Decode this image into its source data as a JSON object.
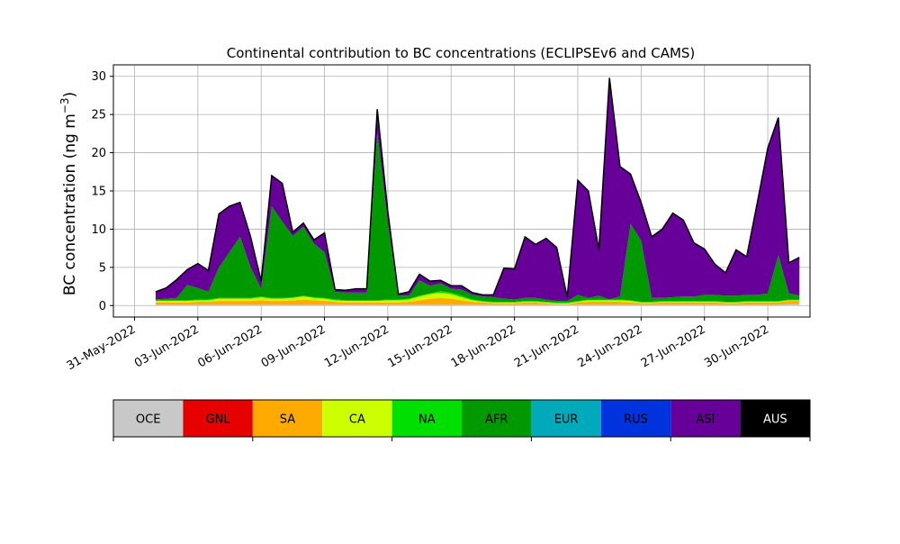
{
  "chart_data": {
    "type": "area",
    "title": "Continental contribution to BC concentrations (ECLIPSEv6 and CAMS)",
    "ylabel": "BC concentration (ng m",
    "ylabel_superscript": "−3",
    "ylabel_close": ")",
    "xlabel": "",
    "x_axis": "dates",
    "x_range": [
      "2022-05-30",
      "2022-07-02"
    ],
    "ylim": [
      -1.5,
      31.5
    ],
    "grid": true,
    "stacked": true,
    "yticks": [
      0,
      5,
      10,
      15,
      20,
      25,
      30
    ],
    "xtick_dates": [
      "2022-05-31",
      "2022-06-03",
      "2022-06-06",
      "2022-06-09",
      "2022-06-12",
      "2022-06-15",
      "2022-06-18",
      "2022-06-21",
      "2022-06-24",
      "2022-06-27",
      "2022-06-30"
    ],
    "xtick_labels": [
      "31-May-2022",
      "03-Jun-2022",
      "06-Jun-2022",
      "09-Jun-2022",
      "12-Jun-2022",
      "15-Jun-2022",
      "18-Jun-2022",
      "21-Jun-2022",
      "24-Jun-2022",
      "27-Jun-2022",
      "30-Jun-2022"
    ],
    "x": [
      "2022-06-01",
      "2022-06-01T12:00",
      "2022-06-02",
      "2022-06-02T12:00",
      "2022-06-03",
      "2022-06-03T12:00",
      "2022-06-04",
      "2022-06-04T12:00",
      "2022-06-05",
      "2022-06-05T12:00",
      "2022-06-06",
      "2022-06-06T12:00",
      "2022-06-07",
      "2022-06-07T12:00",
      "2022-06-08",
      "2022-06-08T12:00",
      "2022-06-09",
      "2022-06-09T12:00",
      "2022-06-10",
      "2022-06-10T12:00",
      "2022-06-11",
      "2022-06-11T12:00",
      "2022-06-12",
      "2022-06-12T12:00",
      "2022-06-13",
      "2022-06-13T12:00",
      "2022-06-14",
      "2022-06-14T12:00",
      "2022-06-15",
      "2022-06-15T12:00",
      "2022-06-16",
      "2022-06-16T12:00",
      "2022-06-17",
      "2022-06-17T12:00",
      "2022-06-18",
      "2022-06-18T12:00",
      "2022-06-19",
      "2022-06-19T12:00",
      "2022-06-20",
      "2022-06-20T12:00",
      "2022-06-21",
      "2022-06-21T12:00",
      "2022-06-22",
      "2022-06-22T12:00",
      "2022-06-23",
      "2022-06-23T12:00",
      "2022-06-24",
      "2022-06-24T12:00",
      "2022-06-25",
      "2022-06-25T12:00",
      "2022-06-26",
      "2022-06-26T12:00",
      "2022-06-27",
      "2022-06-27T12:00",
      "2022-06-28",
      "2022-06-28T12:00",
      "2022-06-29",
      "2022-06-29T12:00",
      "2022-06-30",
      "2022-06-30T12:00",
      "2022-07-01",
      "2022-07-01T12:00"
    ],
    "series": [
      {
        "name": "OCE",
        "color": "#c8c8c8",
        "values": [
          0.1,
          0.1,
          0.1,
          0.1,
          0.1,
          0.1,
          0.1,
          0.1,
          0.1,
          0.1,
          0.1,
          0.1,
          0.1,
          0.1,
          0.1,
          0.1,
          0.1,
          0.1,
          0.1,
          0.1,
          0.1,
          0.1,
          0.1,
          0.1,
          0.1,
          0.1,
          0.1,
          0.1,
          0.1,
          0.1,
          0.1,
          0.1,
          0.1,
          0.1,
          0.1,
          0.1,
          0.1,
          0.1,
          0.1,
          0.1,
          0.1,
          0.1,
          0.1,
          0.1,
          0.1,
          0.1,
          0.1,
          0.1,
          0.1,
          0.1,
          0.1,
          0.1,
          0.1,
          0.1,
          0.1,
          0.1,
          0.1,
          0.1,
          0.1,
          0.1,
          0.2,
          0.2
        ]
      },
      {
        "name": "GNL",
        "color": "#e60000",
        "values": [
          0,
          0,
          0,
          0,
          0,
          0,
          0,
          0,
          0,
          0,
          0,
          0,
          0,
          0,
          0,
          0,
          0,
          0,
          0,
          0,
          0,
          0,
          0,
          0,
          0,
          0,
          0,
          0,
          0,
          0,
          0,
          0,
          0,
          0,
          0,
          0,
          0,
          0,
          0,
          0,
          0,
          0,
          0,
          0,
          0,
          0,
          0,
          0,
          0,
          0,
          0,
          0,
          0,
          0,
          0,
          0,
          0,
          0,
          0,
          0,
          0,
          0
        ]
      },
      {
        "name": "SA",
        "color": "#ffaa00",
        "values": [
          0.3,
          0.3,
          0.3,
          0.3,
          0.4,
          0.4,
          0.5,
          0.5,
          0.5,
          0.5,
          0.6,
          0.5,
          0.5,
          0.6,
          0.7,
          0.6,
          0.5,
          0.4,
          0.3,
          0.3,
          0.3,
          0.3,
          0.3,
          0.3,
          0.4,
          0.6,
          0.8,
          0.9,
          0.8,
          0.6,
          0.4,
          0.3,
          0.2,
          0.2,
          0.2,
          0.3,
          0.3,
          0.2,
          0.1,
          0.1,
          0.3,
          0.4,
          0.4,
          0.4,
          0.4,
          0.3,
          0.2,
          0.2,
          0.3,
          0.3,
          0.3,
          0.3,
          0.3,
          0.3,
          0.2,
          0.2,
          0.3,
          0.3,
          0.3,
          0.3,
          0.4,
          0.4
        ]
      },
      {
        "name": "CA",
        "color": "#ccff00",
        "values": [
          0.2,
          0.2,
          0.2,
          0.2,
          0.2,
          0.2,
          0.3,
          0.3,
          0.3,
          0.3,
          0.4,
          0.3,
          0.3,
          0.3,
          0.4,
          0.3,
          0.3,
          0.2,
          0.2,
          0.2,
          0.2,
          0.2,
          0.3,
          0.3,
          0.3,
          0.5,
          0.6,
          0.7,
          0.6,
          0.4,
          0.2,
          0.1,
          0.1,
          0.1,
          0.1,
          0.1,
          0.1,
          0.1,
          0.1,
          0.1,
          0.1,
          0.2,
          0.2,
          0.2,
          0.2,
          0.2,
          0.1,
          0.1,
          0.1,
          0.1,
          0.1,
          0.1,
          0.1,
          0.1,
          0.1,
          0.1,
          0.1,
          0.1,
          0.1,
          0.1,
          0.1,
          0.1
        ]
      },
      {
        "name": "NA",
        "color": "#00e000",
        "values": [
          0.1,
          0.1,
          0.1,
          0.1,
          0.1,
          0.1,
          0.1,
          0.1,
          0.1,
          0.1,
          0.1,
          0.1,
          0.1,
          0.1,
          0.1,
          0.1,
          0.1,
          0.1,
          0.1,
          0.1,
          0.1,
          0.1,
          0.1,
          0.1,
          0.1,
          0.1,
          0.1,
          0.2,
          0.2,
          0.2,
          0.1,
          0.1,
          0.1,
          0.1,
          0.1,
          0.1,
          0.1,
          0.1,
          0.1,
          0.1,
          0.1,
          0.1,
          0.1,
          0.1,
          0.1,
          0.1,
          0.1,
          0.1,
          0.1,
          0.1,
          0.1,
          0.1,
          0.1,
          0.1,
          0.1,
          0.1,
          0.1,
          0.1,
          0.1,
          0.1,
          0.1,
          0.1
        ]
      },
      {
        "name": "AFR",
        "color": "#009900",
        "values": [
          0.1,
          0.2,
          0.3,
          2.0,
          1.5,
          1.0,
          4.0,
          6.0,
          8.0,
          4.0,
          1.0,
          12.0,
          10.0,
          8.0,
          9.0,
          7.0,
          6.0,
          1.0,
          1.0,
          1.0,
          1.0,
          22.0,
          10.0,
          0.5,
          0.4,
          2.0,
          1.0,
          1.0,
          0.5,
          0.8,
          0.6,
          0.6,
          0.6,
          0.4,
          0.3,
          0.4,
          0.4,
          0.3,
          0.2,
          0.2,
          0.8,
          0.2,
          0.5,
          0.0,
          0.4,
          10.0,
          8.0,
          0.5,
          0.4,
          0.5,
          0.6,
          0.6,
          0.8,
          0.8,
          0.8,
          0.8,
          0.8,
          0.8,
          1.0,
          6.0,
          0.8,
          0.5
        ]
      },
      {
        "name": "EUR",
        "color": "#00aabb",
        "values": [
          0,
          0,
          0,
          0,
          0,
          0,
          0,
          0,
          0,
          0,
          0,
          0,
          0,
          0,
          0,
          0,
          0,
          0,
          0,
          0,
          0,
          0,
          0,
          0,
          0,
          0,
          0,
          0,
          0,
          0,
          0,
          0,
          0,
          0,
          0,
          0,
          0,
          0,
          0,
          0,
          0,
          0,
          0,
          0,
          0,
          0,
          0,
          0,
          0,
          0,
          0,
          0,
          0,
          0,
          0,
          0,
          0,
          0,
          0,
          0,
          0,
          0
        ]
      },
      {
        "name": "RUS",
        "color": "#0033dd",
        "values": [
          0,
          0,
          0,
          0,
          0,
          0,
          0,
          0,
          0,
          0,
          0,
          0,
          0,
          0,
          0,
          0,
          0,
          0,
          0,
          0,
          0,
          0,
          0,
          0,
          0,
          0,
          0,
          0,
          0,
          0,
          0,
          0,
          0,
          0,
          0,
          0,
          0,
          0,
          0,
          0,
          0,
          0,
          0,
          0,
          0,
          0,
          0,
          0,
          0,
          0,
          0,
          0,
          0,
          0,
          0,
          0,
          0,
          0,
          0,
          0,
          0,
          0
        ]
      },
      {
        "name": "ASI",
        "color": "#660099",
        "values": [
          1.0,
          1.4,
          2.4,
          2.0,
          3.2,
          2.8,
          7.0,
          6.0,
          4.5,
          4.0,
          1.0,
          4.0,
          5.0,
          0.5,
          0.5,
          0.5,
          2.5,
          0.3,
          0.3,
          0.5,
          0.5,
          3.0,
          1.5,
          0.2,
          0.5,
          0.8,
          0.6,
          0.4,
          0.4,
          0.5,
          0.3,
          0.2,
          0.3,
          4.0,
          4.0,
          8.0,
          7.0,
          8.0,
          7.0,
          0.5,
          15.0,
          14.0,
          6.0,
          29.0,
          17.0,
          6.5,
          5.0,
          8.0,
          9.0,
          11.0,
          10.0,
          7.0,
          6.0,
          4.0,
          3.0,
          6.0,
          5.0,
          12.0,
          19.0,
          18.0,
          4.0,
          5.0
        ]
      },
      {
        "name": "AUS",
        "color": "#000000",
        "values": [
          0,
          0,
          0,
          0,
          0,
          0,
          0,
          0,
          0,
          0,
          0,
          0,
          0,
          0,
          0,
          0,
          0,
          0,
          0,
          0,
          0,
          0,
          0,
          0,
          0,
          0,
          0,
          0,
          0,
          0,
          0,
          0,
          0,
          0,
          0,
          0,
          0,
          0,
          0,
          0,
          0,
          0,
          0,
          0,
          0,
          0,
          0,
          0,
          0,
          0,
          0,
          0,
          0,
          0,
          0,
          0,
          0,
          0,
          0,
          0,
          0,
          0
        ]
      }
    ],
    "total_line_color": "#000000"
  }
}
